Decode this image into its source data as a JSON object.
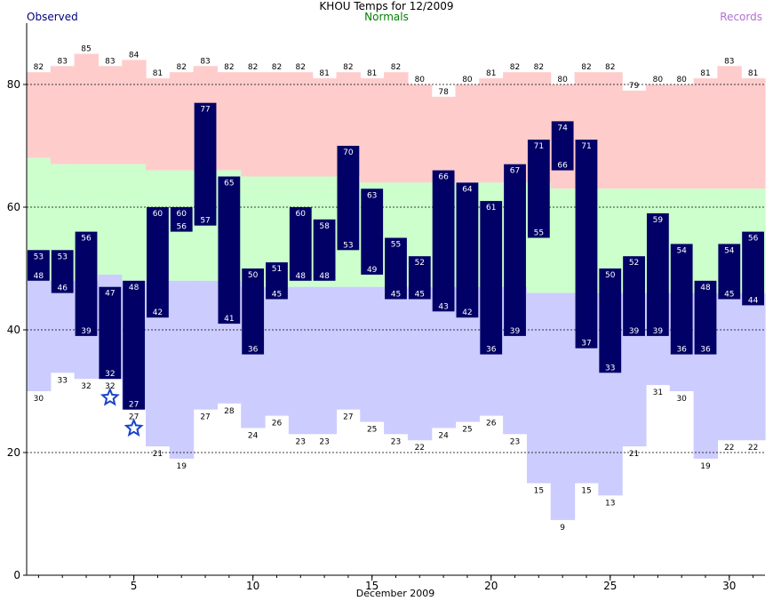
{
  "header": {
    "title": "KHOU Temps for 12/2009",
    "observed_legend": "Observed",
    "normals_legend": "Normals",
    "records_legend": "Records"
  },
  "colors": {
    "observed_bar": "#000066",
    "record_high_band": "#ffcccc",
    "normal_band": "#ccffcc",
    "record_low_band": "#ccccff",
    "star": "#1a44cc"
  },
  "chart_data": {
    "type": "bar",
    "title": "KHOU Temps for 12/2009",
    "xlabel": "December 2009",
    "ylabel": "",
    "ylim": [
      0,
      90
    ],
    "yticks": [
      0,
      20,
      40,
      60,
      80
    ],
    "xticks": [
      5,
      10,
      15,
      20,
      25,
      30
    ],
    "grid": "dashed at 20, 40, 60, 80",
    "days": [
      1,
      2,
      3,
      4,
      5,
      6,
      7,
      8,
      9,
      10,
      11,
      12,
      13,
      14,
      15,
      16,
      17,
      18,
      19,
      20,
      21,
      22,
      23,
      24,
      25,
      26,
      27,
      28,
      29,
      30,
      31
    ],
    "observed_high": [
      53,
      53,
      56,
      47,
      48,
      60,
      60,
      77,
      65,
      50,
      51,
      60,
      58,
      70,
      63,
      55,
      52,
      66,
      64,
      61,
      67,
      71,
      74,
      71,
      50,
      52,
      59,
      54,
      48,
      54,
      56
    ],
    "observed_low": [
      48,
      46,
      39,
      32,
      27,
      42,
      56,
      57,
      41,
      36,
      45,
      48,
      48,
      53,
      49,
      45,
      45,
      43,
      42,
      36,
      39,
      55,
      66,
      37,
      33,
      39,
      39,
      36,
      36,
      45,
      44
    ],
    "record_high": [
      82,
      83,
      85,
      83,
      84,
      81,
      82,
      83,
      82,
      82,
      82,
      82,
      81,
      82,
      81,
      82,
      80,
      78,
      80,
      81,
      82,
      82,
      80,
      82,
      82,
      79,
      80,
      80,
      81,
      83,
      81
    ],
    "record_low": [
      30,
      33,
      32,
      32,
      27,
      21,
      19,
      27,
      28,
      24,
      26,
      23,
      23,
      27,
      25,
      23,
      22,
      24,
      25,
      26,
      23,
      15,
      9,
      15,
      13,
      21,
      31,
      30,
      19,
      22,
      22
    ],
    "normal_high": [
      68,
      67,
      67,
      67,
      67,
      66,
      66,
      66,
      66,
      65,
      65,
      65,
      65,
      65,
      64,
      64,
      64,
      64,
      64,
      64,
      64,
      64,
      63,
      63,
      63,
      63,
      63,
      63,
      63,
      63,
      63
    ],
    "normal_low": [
      48,
      48,
      48,
      49,
      48,
      48,
      48,
      48,
      48,
      47,
      47,
      47,
      47,
      47,
      47,
      47,
      47,
      47,
      47,
      47,
      47,
      46,
      46,
      46,
      46,
      46,
      46,
      46,
      46,
      46,
      46
    ],
    "new_record_low_days": [
      4,
      5
    ]
  }
}
